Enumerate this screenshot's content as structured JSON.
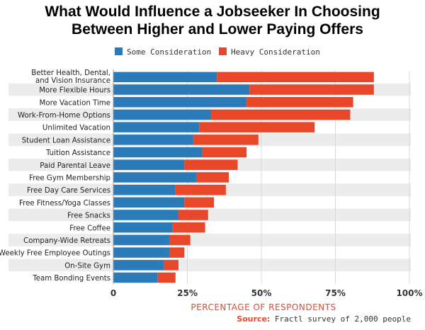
{
  "title_line1": "What Would Influence a Jobseeker In Choosing",
  "title_line2": "Between Higher and Lower Paying Offers",
  "source_label": "Source:",
  "source_text": "Fractl survey of 2,000 people",
  "colors": {
    "some": "#2b7bb9",
    "heavy": "#e8472a",
    "stripe": "#ececec",
    "axis_label": "#e8472a"
  },
  "chart_data": {
    "type": "bar",
    "orientation": "horizontal",
    "stacked": true,
    "xlabel": "PERCENTAGE OF RESPONDENTS",
    "xlim": [
      0,
      100
    ],
    "xticks": [
      "0",
      "25%",
      "50%",
      "75%",
      "100%"
    ],
    "legend_position": "top",
    "categories": [
      [
        "Better Health, Dental,",
        "and Vision Insurance"
      ],
      [
        "More Flexible Hours"
      ],
      [
        "More Vacation Time"
      ],
      [
        "Work-From-Home Options"
      ],
      [
        "Unlimited Vacation"
      ],
      [
        "Student Loan Assistance"
      ],
      [
        "Tuition Assistance"
      ],
      [
        "Paid Parental Leave"
      ],
      [
        "Free Gym Membership"
      ],
      [
        "Free Day Care Services"
      ],
      [
        "Free Fitness/Yoga Classes"
      ],
      [
        "Free Snacks"
      ],
      [
        "Free Coffee"
      ],
      [
        "Company-Wide Retreats"
      ],
      [
        "Weekly Free Employee Outings"
      ],
      [
        "On-Site Gym"
      ],
      [
        "Team Bonding Events"
      ]
    ],
    "series": [
      {
        "name": "Some Consideration",
        "values": [
          35,
          46,
          45,
          33,
          29,
          27,
          30,
          24,
          28,
          21,
          24,
          22,
          20,
          19,
          19,
          17,
          15
        ]
      },
      {
        "name": "Heavy Consideration",
        "values": [
          53,
          42,
          36,
          47,
          39,
          22,
          15,
          18,
          11,
          17,
          10,
          10,
          11,
          7,
          5,
          5,
          6
        ]
      }
    ]
  }
}
